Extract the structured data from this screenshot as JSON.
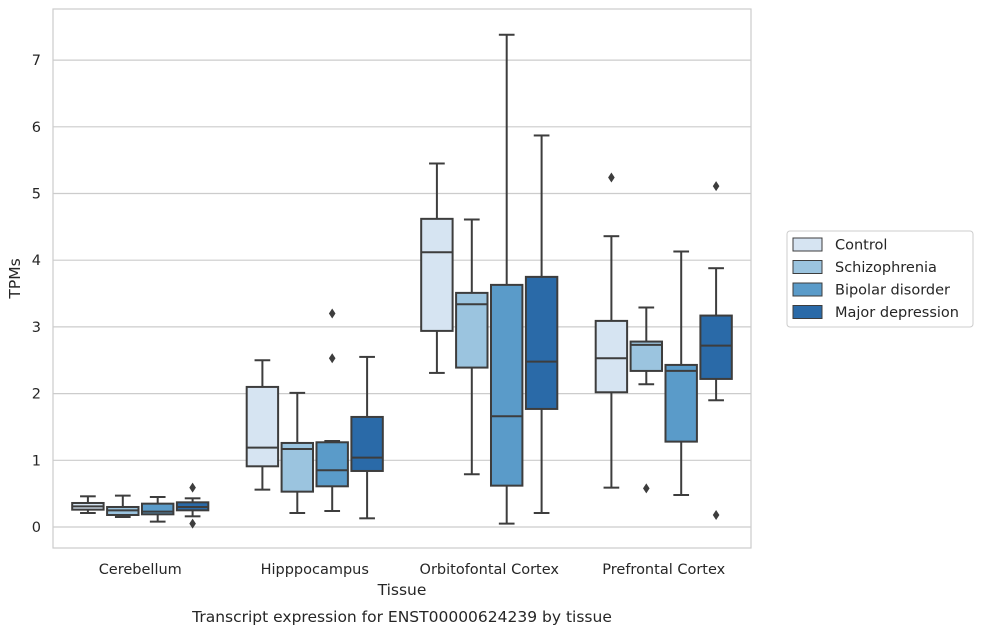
{
  "chart_data": {
    "type": "box",
    "xlabel": "Tissue",
    "ylabel": "TPMs",
    "caption": "Transcript expression for ENST00000624239 by tissue",
    "ylim": [
      -0.3,
      7.75
    ],
    "yticks": [
      0,
      1,
      2,
      3,
      4,
      5,
      6,
      7
    ],
    "grid": "horizontal",
    "legend_position": "right",
    "categories": [
      "Cerebellum",
      "Hipppocampus",
      "Orbitofontal Cortex",
      "Prefrontal Cortex"
    ],
    "series": [
      {
        "name": "Control",
        "color": "#d6e4f2",
        "boxes": [
          {
            "whisker_low": 0.21,
            "q1": 0.26,
            "median": 0.31,
            "q3": 0.36,
            "whisker_high": 0.46,
            "outliers": []
          },
          {
            "whisker_low": 0.56,
            "q1": 0.91,
            "median": 1.19,
            "q3": 2.1,
            "whisker_high": 2.5,
            "outliers": []
          },
          {
            "whisker_low": 2.31,
            "q1": 2.94,
            "median": 4.12,
            "q3": 4.62,
            "whisker_high": 5.45,
            "outliers": []
          },
          {
            "whisker_low": 0.59,
            "q1": 2.02,
            "median": 2.53,
            "q3": 3.09,
            "whisker_high": 4.36,
            "outliers": [
              5.24
            ]
          }
        ]
      },
      {
        "name": "Schizophrenia",
        "color": "#9bc4df",
        "boxes": [
          {
            "whisker_low": 0.15,
            "q1": 0.18,
            "median": 0.25,
            "q3": 0.3,
            "whisker_high": 0.47,
            "outliers": []
          },
          {
            "whisker_low": 0.21,
            "q1": 0.53,
            "median": 1.17,
            "q3": 1.26,
            "whisker_high": 2.01,
            "outliers": []
          },
          {
            "whisker_low": 0.79,
            "q1": 2.39,
            "median": 3.34,
            "q3": 3.51,
            "whisker_high": 4.61,
            "outliers": []
          },
          {
            "whisker_low": 2.14,
            "q1": 2.34,
            "median": 2.73,
            "q3": 2.78,
            "whisker_high": 3.29,
            "outliers": [
              0.58
            ]
          }
        ]
      },
      {
        "name": "Bipolar disorder",
        "color": "#5a9bc9",
        "boxes": [
          {
            "whisker_low": 0.08,
            "q1": 0.19,
            "median": 0.23,
            "q3": 0.35,
            "whisker_high": 0.45,
            "outliers": []
          },
          {
            "whisker_low": 0.24,
            "q1": 0.61,
            "median": 0.85,
            "q3": 1.27,
            "whisker_high": 1.29,
            "outliers": [
              2.53,
              3.2
            ]
          },
          {
            "whisker_low": 0.05,
            "q1": 0.62,
            "median": 1.66,
            "q3": 3.63,
            "whisker_high": 7.38,
            "outliers": []
          },
          {
            "whisker_low": 0.48,
            "q1": 1.28,
            "median": 2.34,
            "q3": 2.43,
            "whisker_high": 4.13,
            "outliers": []
          }
        ]
      },
      {
        "name": "Major depression",
        "color": "#2a6aa8",
        "boxes": [
          {
            "whisker_low": 0.16,
            "q1": 0.25,
            "median": 0.3,
            "q3": 0.37,
            "whisker_high": 0.43,
            "outliers": [
              0.05,
              0.59
            ]
          },
          {
            "whisker_low": 0.13,
            "q1": 0.84,
            "median": 1.04,
            "q3": 1.65,
            "whisker_high": 2.55,
            "outliers": []
          },
          {
            "whisker_low": 0.21,
            "q1": 1.77,
            "median": 2.48,
            "q3": 3.75,
            "whisker_high": 5.87,
            "outliers": []
          },
          {
            "whisker_low": 1.9,
            "q1": 2.22,
            "median": 2.72,
            "q3": 3.17,
            "whisker_high": 3.88,
            "outliers": [
              0.18,
              5.11
            ]
          }
        ]
      }
    ]
  }
}
